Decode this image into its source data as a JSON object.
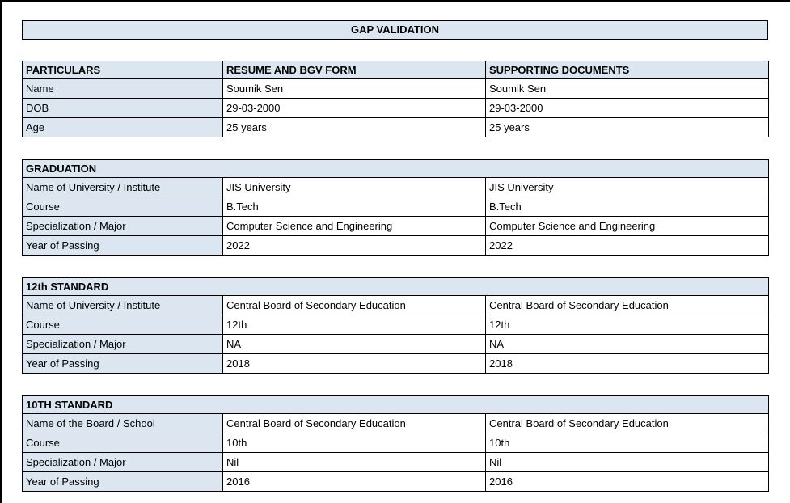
{
  "title": "GAP VALIDATION",
  "colors": {
    "header_fill": "#dce6f1",
    "border": "#000000",
    "text": "#000000",
    "page_background": "#ffffff"
  },
  "particulars_table": {
    "headers": [
      "PARTICULARS",
      "RESUME AND BGV FORM",
      "SUPPORTING DOCUMENTS"
    ],
    "rows": [
      {
        "label": "Name",
        "resume": "Soumik Sen",
        "supporting": "Soumik Sen"
      },
      {
        "label": "DOB",
        "resume": "29-03-2000",
        "supporting": "29-03-2000"
      },
      {
        "label": "Age",
        "resume": "25 years",
        "supporting": "25 years"
      }
    ]
  },
  "sections": [
    {
      "title": "GRADUATION",
      "rows": [
        {
          "label": "Name of University / Institute",
          "resume": "JIS University",
          "supporting": "JIS University"
        },
        {
          "label": "Course",
          "resume": "B.Tech",
          "supporting": "B.Tech"
        },
        {
          "label": "Specialization / Major",
          "resume": "Computer Science and Engineering",
          "supporting": "Computer Science and Engineering"
        },
        {
          "label": "Year of Passing",
          "resume": "2022",
          "supporting": "2022"
        }
      ]
    },
    {
      "title": "12th STANDARD",
      "rows": [
        {
          "label": "Name of University / Institute",
          "resume": "Central Board of Secondary Education",
          "supporting": "Central Board of Secondary Education"
        },
        {
          "label": "Course",
          "resume": "12th",
          "supporting": "12th"
        },
        {
          "label": "Specialization / Major",
          "resume": "NA",
          "supporting": "NA"
        },
        {
          "label": "Year of Passing",
          "resume": "2018",
          "supporting": "2018"
        }
      ]
    },
    {
      "title": "10TH STANDARD",
      "rows": [
        {
          "label": "Name of the Board / School",
          "resume": "Central Board of Secondary Education",
          "supporting": "Central Board of Secondary Education"
        },
        {
          "label": "Course",
          "resume": "10th",
          "supporting": "10th"
        },
        {
          "label": "Specialization / Major",
          "resume": "Nil",
          "supporting": "Nil"
        },
        {
          "label": "Year of Passing",
          "resume": "2016",
          "supporting": "2016"
        }
      ]
    }
  ]
}
